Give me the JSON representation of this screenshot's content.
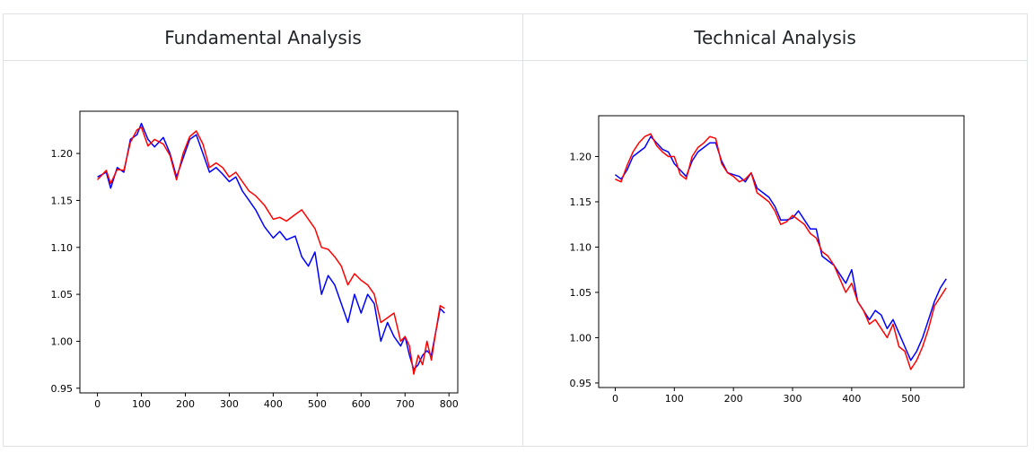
{
  "panels": {
    "left": {
      "title": "Fundamental Analysis"
    },
    "right": {
      "title": "Technical Analysis"
    }
  },
  "chart_data": [
    {
      "type": "line",
      "title": "",
      "xlabel": "",
      "ylabel": "",
      "xlim": [
        -40,
        820
      ],
      "ylim": [
        0.945,
        1.245
      ],
      "xticks": [
        0,
        100,
        200,
        300,
        400,
        500,
        600,
        700,
        800
      ],
      "yticks": [
        0.95,
        1.0,
        1.05,
        1.1,
        1.15,
        1.2
      ],
      "ytick_labels": [
        "0.95",
        "1.00",
        "1.05",
        "1.10",
        "1.15",
        "1.20"
      ],
      "grid": false,
      "series": [
        {
          "color": "#0000ff",
          "x": [
            0,
            20,
            30,
            45,
            60,
            75,
            90,
            100,
            115,
            130,
            150,
            165,
            180,
            195,
            210,
            225,
            240,
            255,
            270,
            285,
            300,
            315,
            330,
            345,
            360,
            380,
            400,
            415,
            430,
            450,
            465,
            480,
            495,
            510,
            525,
            540,
            555,
            570,
            585,
            600,
            615,
            630,
            645,
            660,
            675,
            690,
            700,
            710,
            720,
            730,
            740,
            750,
            760,
            770,
            780,
            790
          ],
          "y": [
            1.175,
            1.18,
            1.163,
            1.185,
            1.18,
            1.215,
            1.22,
            1.232,
            1.215,
            1.207,
            1.217,
            1.2,
            1.175,
            1.195,
            1.215,
            1.22,
            1.2,
            1.18,
            1.185,
            1.178,
            1.17,
            1.175,
            1.16,
            1.15,
            1.14,
            1.122,
            1.11,
            1.117,
            1.108,
            1.112,
            1.09,
            1.08,
            1.095,
            1.05,
            1.07,
            1.06,
            1.04,
            1.02,
            1.05,
            1.03,
            1.05,
            1.04,
            1.0,
            1.02,
            1.005,
            0.995,
            1.005,
            0.985,
            0.97,
            0.975,
            0.985,
            0.99,
            0.985,
            1.01,
            1.035,
            1.03
          ]
        },
        {
          "color": "#ff0000",
          "x": [
            0,
            20,
            30,
            45,
            60,
            75,
            90,
            100,
            115,
            130,
            150,
            165,
            180,
            195,
            210,
            225,
            240,
            255,
            270,
            285,
            300,
            315,
            330,
            345,
            360,
            380,
            400,
            415,
            430,
            450,
            465,
            480,
            495,
            510,
            525,
            540,
            555,
            570,
            585,
            600,
            615,
            630,
            645,
            660,
            675,
            690,
            700,
            710,
            720,
            730,
            740,
            750,
            760,
            770,
            780,
            790
          ],
          "y": [
            1.172,
            1.182,
            1.168,
            1.183,
            1.182,
            1.212,
            1.225,
            1.228,
            1.208,
            1.215,
            1.21,
            1.198,
            1.172,
            1.2,
            1.218,
            1.224,
            1.21,
            1.185,
            1.19,
            1.185,
            1.175,
            1.18,
            1.17,
            1.16,
            1.155,
            1.145,
            1.13,
            1.132,
            1.128,
            1.135,
            1.14,
            1.13,
            1.12,
            1.1,
            1.098,
            1.09,
            1.08,
            1.06,
            1.072,
            1.065,
            1.06,
            1.05,
            1.02,
            1.025,
            1.03,
            1.0,
            1.005,
            0.995,
            0.965,
            0.985,
            0.975,
            1.0,
            0.98,
            1.01,
            1.038,
            1.035
          ]
        }
      ]
    },
    {
      "type": "line",
      "title": "",
      "xlabel": "",
      "ylabel": "",
      "xlim": [
        -28,
        590
      ],
      "ylim": [
        0.945,
        1.245
      ],
      "xticks": [
        0,
        100,
        200,
        300,
        400,
        500
      ],
      "yticks": [
        0.95,
        1.0,
        1.05,
        1.1,
        1.15,
        1.2
      ],
      "ytick_labels": [
        "0.95",
        "1.00",
        "1.05",
        "1.10",
        "1.15",
        "1.20"
      ],
      "grid": false,
      "series": [
        {
          "color": "#0000ff",
          "x": [
            0,
            10,
            20,
            30,
            40,
            50,
            60,
            70,
            80,
            90,
            100,
            110,
            120,
            130,
            140,
            150,
            160,
            170,
            180,
            190,
            200,
            210,
            220,
            230,
            240,
            250,
            260,
            270,
            280,
            290,
            300,
            310,
            320,
            330,
            340,
            350,
            360,
            370,
            380,
            390,
            400,
            410,
            420,
            430,
            440,
            450,
            460,
            470,
            480,
            490,
            500,
            510,
            520,
            530,
            540,
            550,
            560
          ],
          "y": [
            1.18,
            1.175,
            1.185,
            1.2,
            1.205,
            1.21,
            1.222,
            1.215,
            1.208,
            1.205,
            1.192,
            1.185,
            1.178,
            1.195,
            1.205,
            1.21,
            1.215,
            1.215,
            1.195,
            1.182,
            1.18,
            1.178,
            1.172,
            1.182,
            1.165,
            1.16,
            1.155,
            1.145,
            1.13,
            1.13,
            1.132,
            1.14,
            1.13,
            1.12,
            1.12,
            1.09,
            1.085,
            1.08,
            1.07,
            1.06,
            1.075,
            1.04,
            1.03,
            1.02,
            1.03,
            1.025,
            1.01,
            1.02,
            1.005,
            0.99,
            0.975,
            0.985,
            1.0,
            1.02,
            1.04,
            1.055,
            1.065
          ]
        },
        {
          "color": "#ff0000",
          "x": [
            0,
            10,
            20,
            30,
            40,
            50,
            60,
            70,
            80,
            90,
            100,
            110,
            120,
            130,
            140,
            150,
            160,
            170,
            180,
            190,
            200,
            210,
            220,
            230,
            240,
            250,
            260,
            270,
            280,
            290,
            300,
            310,
            320,
            330,
            340,
            350,
            360,
            370,
            380,
            390,
            400,
            410,
            420,
            430,
            440,
            450,
            460,
            470,
            480,
            490,
            500,
            510,
            520,
            530,
            540,
            550,
            560
          ],
          "y": [
            1.175,
            1.172,
            1.19,
            1.205,
            1.215,
            1.222,
            1.225,
            1.212,
            1.205,
            1.2,
            1.2,
            1.18,
            1.175,
            1.2,
            1.21,
            1.215,
            1.222,
            1.22,
            1.192,
            1.182,
            1.178,
            1.172,
            1.175,
            1.182,
            1.16,
            1.155,
            1.15,
            1.14,
            1.125,
            1.128,
            1.135,
            1.13,
            1.125,
            1.115,
            1.11,
            1.095,
            1.09,
            1.08,
            1.065,
            1.05,
            1.06,
            1.04,
            1.03,
            1.015,
            1.02,
            1.01,
            1.0,
            1.015,
            0.99,
            0.985,
            0.965,
            0.975,
            0.99,
            1.01,
            1.035,
            1.045,
            1.055
          ]
        }
      ]
    }
  ]
}
